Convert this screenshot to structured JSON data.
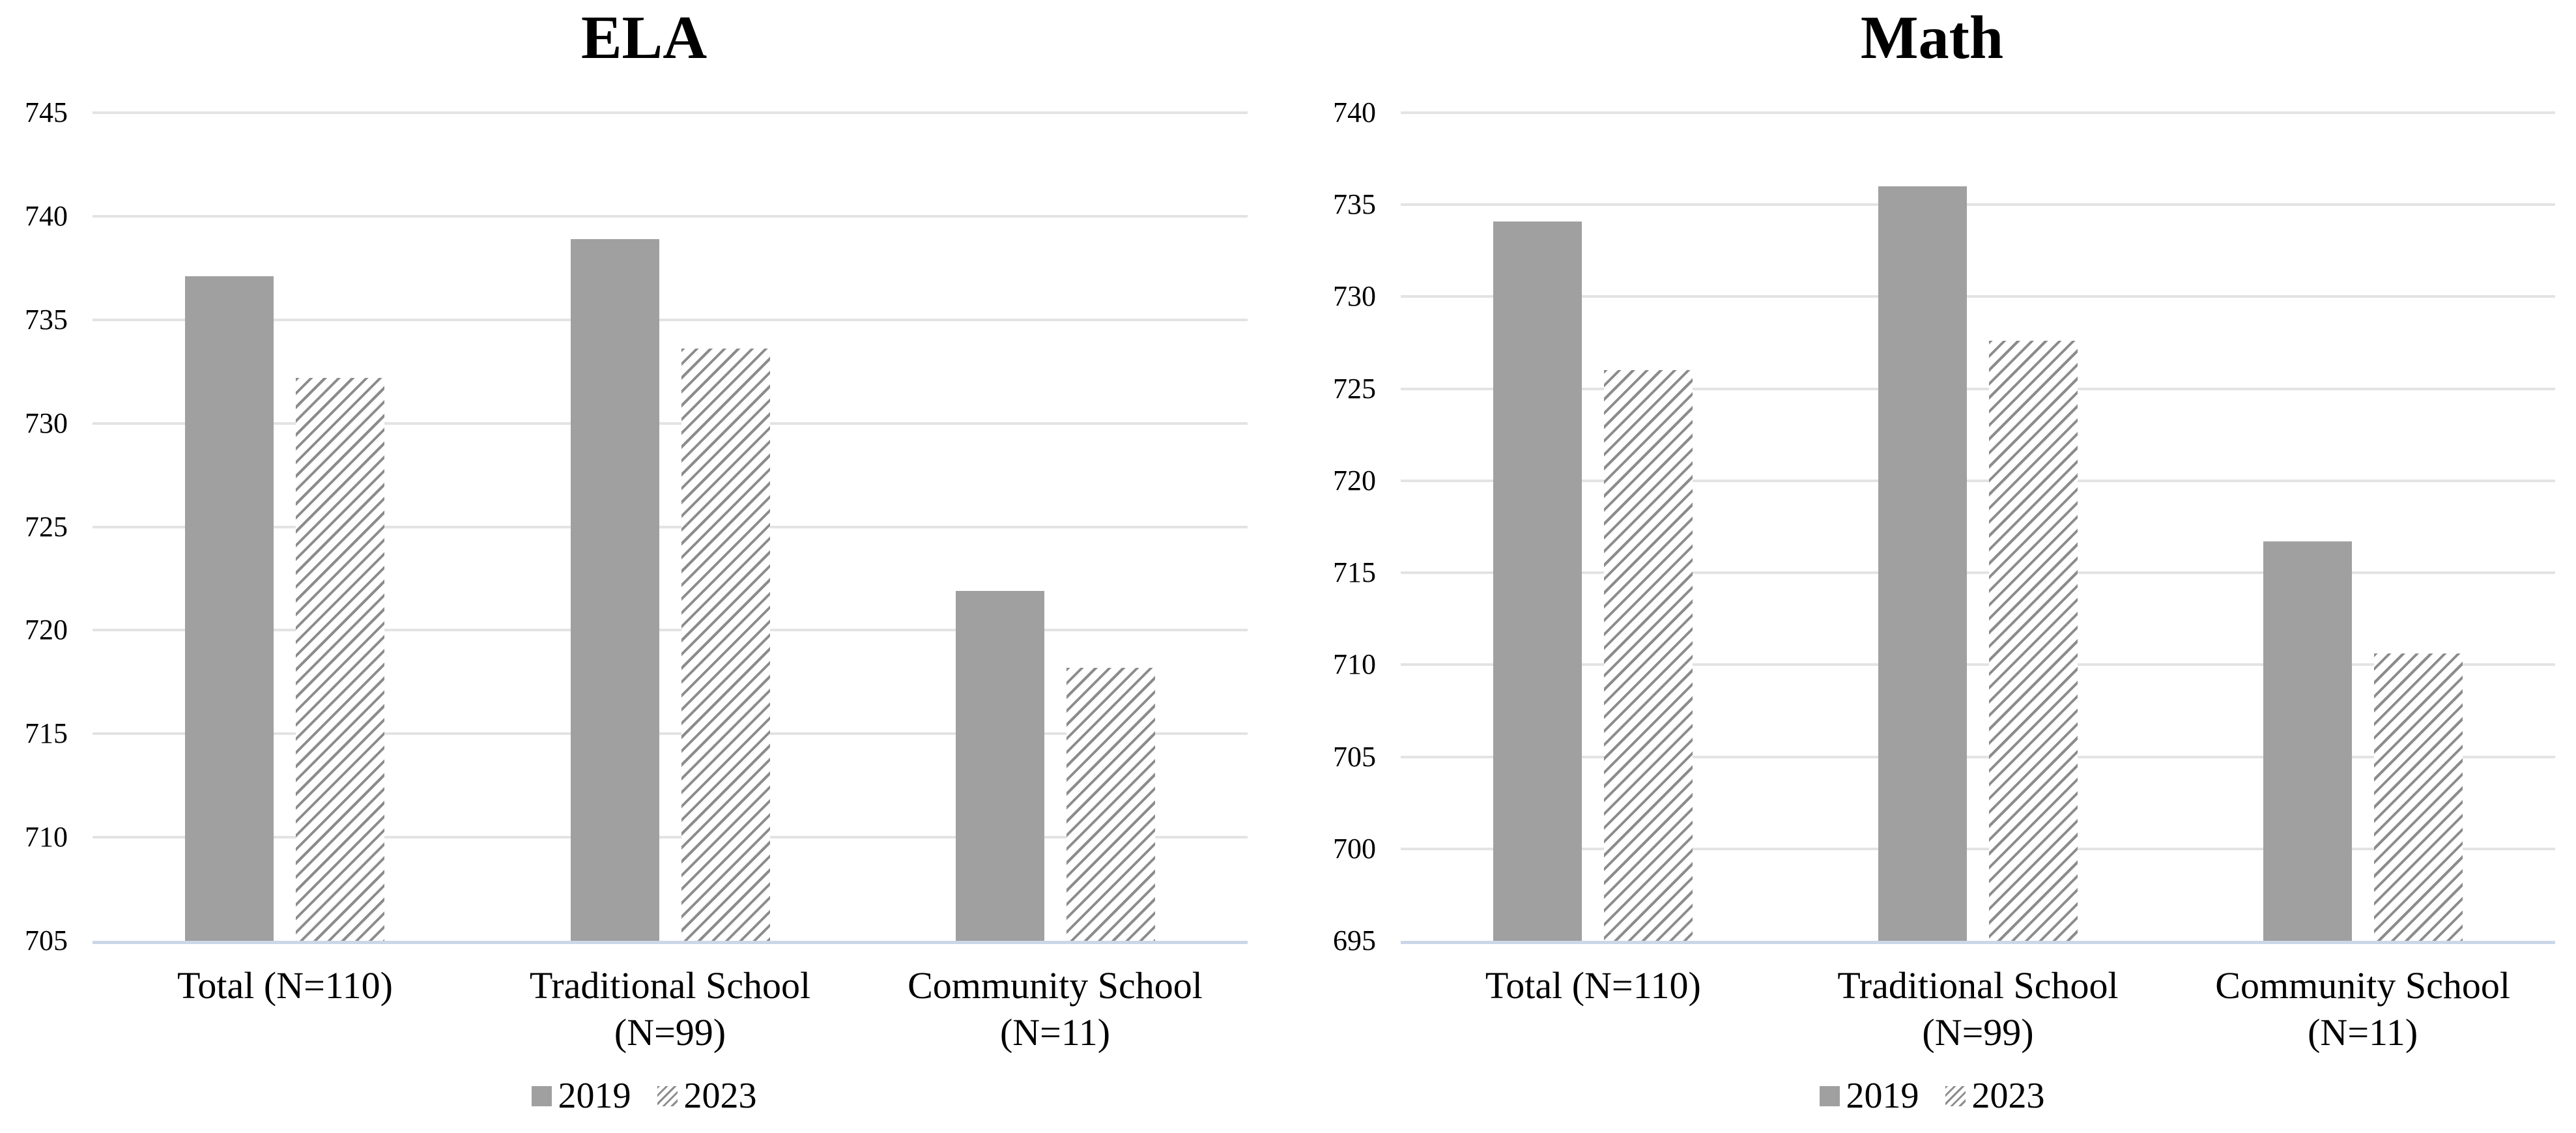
{
  "page": {
    "background": "#ffffff",
    "figure_type": "grouped-bar-chart-pair"
  },
  "colors": {
    "bar_solid": "#a0a0a0",
    "hatch_line": "#8c8c8c",
    "hatch_background": "#ffffff",
    "gridline": "#e3e3e3",
    "axis_baseline": "#ccd6e9",
    "text": "#000000"
  },
  "chart_data": [
    {
      "type": "bar",
      "title": "ELA",
      "categories": [
        {
          "label": "Total (N=110)",
          "sublabel": ""
        },
        {
          "label": "Traditional School",
          "sublabel": "(N=99)"
        },
        {
          "label": "Community School",
          "sublabel": "(N=11)"
        }
      ],
      "series": [
        {
          "name": "2019",
          "style": "solid",
          "values": [
            737.1,
            738.9,
            721.9
          ]
        },
        {
          "name": "2023",
          "style": "hatched",
          "values": [
            732.2,
            733.6,
            718.2
          ]
        }
      ],
      "ylim": [
        705,
        745
      ],
      "ytick_step": 5,
      "grid": true,
      "legend_position": "bottom",
      "legend_labels": [
        "2019",
        "2023"
      ]
    },
    {
      "type": "bar",
      "title": "Math",
      "categories": [
        {
          "label": "Total (N=110)",
          "sublabel": ""
        },
        {
          "label": "Traditional School",
          "sublabel": "(N=99)"
        },
        {
          "label": "Community School",
          "sublabel": "(N=11)"
        }
      ],
      "series": [
        {
          "name": "2019",
          "style": "solid",
          "values": [
            734.1,
            736.0,
            716.7
          ]
        },
        {
          "name": "2023",
          "style": "hatched",
          "values": [
            726.0,
            727.6,
            710.6
          ]
        }
      ],
      "ylim": [
        695,
        740
      ],
      "ytick_step": 5,
      "grid": true,
      "legend_position": "bottom",
      "legend_labels": [
        "2019",
        "2023"
      ]
    }
  ]
}
